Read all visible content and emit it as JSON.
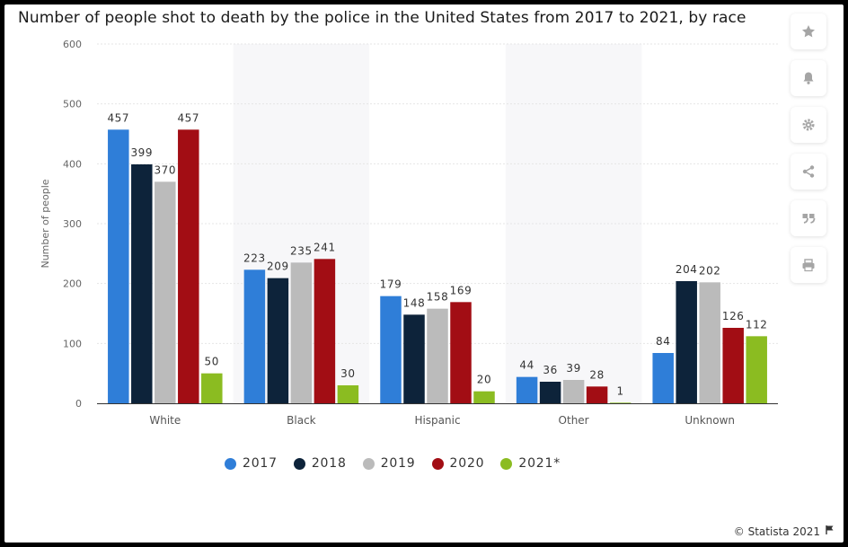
{
  "title": "Number of people shot to death by the police in the United States from 2017 to 2021, by race",
  "credit": "© Statista 2021",
  "sidebar": {
    "icons": [
      "star-icon",
      "bell-icon",
      "gear-icon",
      "share-icon",
      "quote-icon",
      "print-icon"
    ]
  },
  "colors": {
    "2017": "#2f7ed8",
    "2018": "#0d233a",
    "2019": "#bbbbbb",
    "2020": "#a20d14",
    "2021*": "#8bbc21"
  },
  "chart_data": {
    "type": "bar",
    "ylabel": "Number of people",
    "xlabel": "",
    "ylim": [
      0,
      600
    ],
    "yticks": [
      0,
      100,
      200,
      300,
      400,
      500,
      600
    ],
    "grid": true,
    "legend_position": "bottom",
    "categories": [
      "White",
      "Black",
      "Hispanic",
      "Other",
      "Unknown"
    ],
    "series": [
      {
        "name": "2017",
        "values": [
          457,
          223,
          179,
          44,
          84
        ]
      },
      {
        "name": "2018",
        "values": [
          399,
          209,
          148,
          36,
          204
        ]
      },
      {
        "name": "2019",
        "values": [
          370,
          235,
          158,
          39,
          202
        ]
      },
      {
        "name": "2020",
        "values": [
          457,
          241,
          169,
          28,
          126
        ]
      },
      {
        "name": "2021*",
        "values": [
          50,
          30,
          20,
          1,
          112
        ]
      }
    ]
  }
}
